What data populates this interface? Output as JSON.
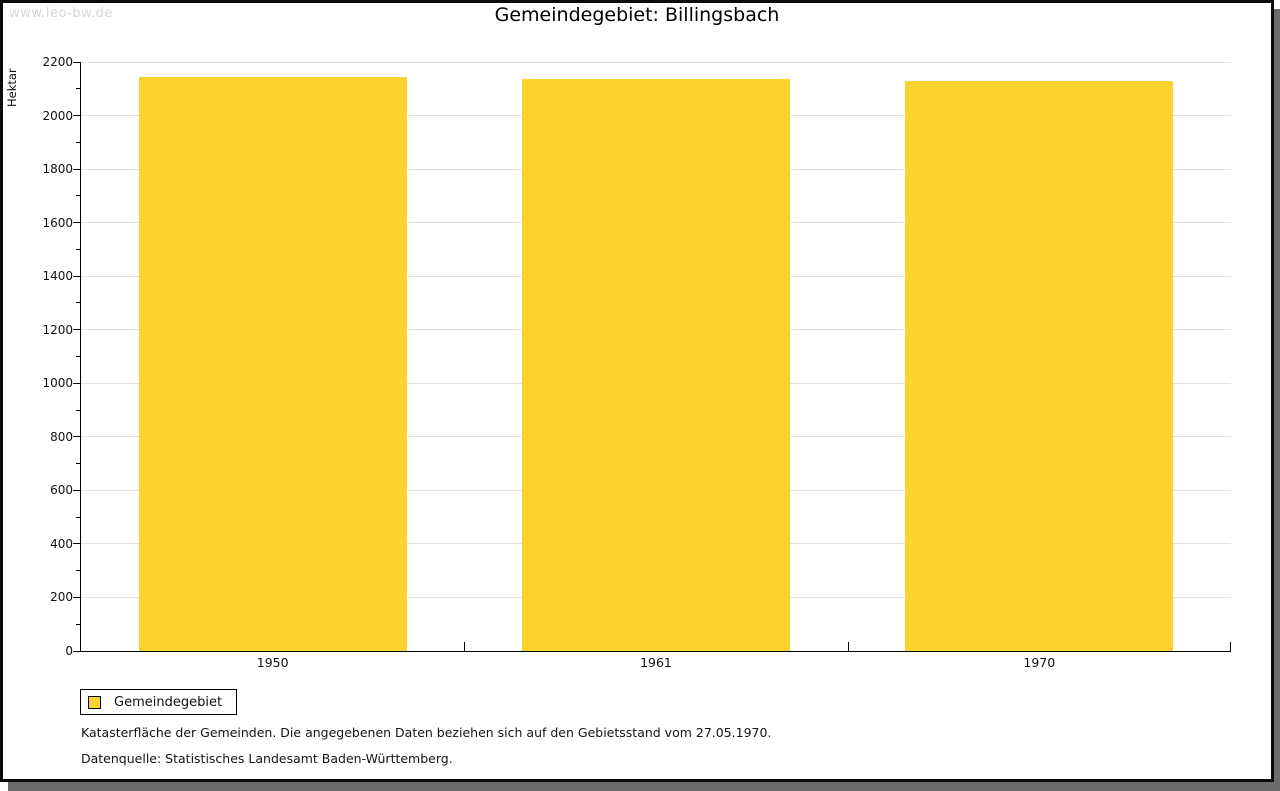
{
  "watermark": "www.leo-bw.de",
  "title": "Gemeindegebiet: Billingsbach",
  "chart_data": {
    "type": "bar",
    "title": "Gemeindegebiet: Billingsbach",
    "categories": [
      "1950",
      "1961",
      "1970"
    ],
    "values": [
      2145,
      2137,
      2130
    ],
    "series": [
      {
        "name": "Gemeindegebiet",
        "values": [
          2145,
          2137,
          2130
        ]
      }
    ],
    "xlabel": "",
    "ylabel": "Hektar",
    "ylim": [
      0,
      2200
    ],
    "ytick_major": 200,
    "ytick_minor": 100,
    "grid": true,
    "bar_color": "#FCD32E",
    "legend": [
      {
        "label": "Gemeindegebiet",
        "color": "#FCD32E"
      }
    ],
    "legend_position": "bottom-left"
  },
  "footnotes": [
    "Katasterfläche der Gemeinden. Die angegebenen Daten beziehen sich auf den Gebietsstand vom 27.05.1970.",
    "Datenquelle: Statistisches Landesamt Baden-Württemberg."
  ]
}
